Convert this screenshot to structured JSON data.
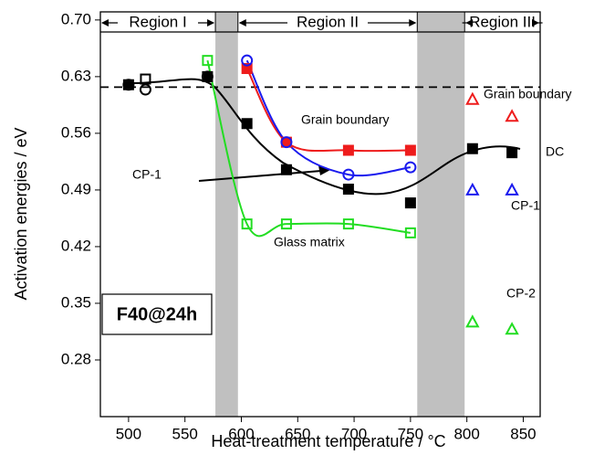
{
  "chart_data": {
    "type": "scatter",
    "xlabel": "Heat-treatment temperature / °C",
    "ylabel": "Activation energies / eV",
    "xlim": [
      475,
      865
    ],
    "ylim": [
      0.21,
      0.71
    ],
    "xticks": [
      500,
      550,
      600,
      650,
      700,
      750,
      800,
      850
    ],
    "yticks": [
      {
        "value": 0.28,
        "label": "0.28"
      },
      {
        "value": 0.35,
        "label": "0.35"
      },
      {
        "value": 0.42,
        "label": "0.42"
      },
      {
        "value": 0.49,
        "label": "0.49"
      },
      {
        "value": 0.56,
        "label": "0.56"
      },
      {
        "value": 0.63,
        "label": "0.63"
      },
      {
        "value": 0.7,
        "label": "0.70"
      }
    ],
    "regions": [
      "Region I",
      "Region II",
      "Region III"
    ],
    "bands": [
      [
        577,
        597
      ],
      [
        756,
        798
      ]
    ],
    "ref_line": 0.617,
    "sample": "F40@24h",
    "annotations": [
      "Grain boundary",
      "Grain boundary",
      "DC",
      "CP-1",
      "CP-1",
      "Glass matrix",
      "CP-2"
    ],
    "series": [
      {
        "color": "#000000",
        "marker": "square",
        "filled": true,
        "x": [
          500,
          570,
          605,
          640,
          695,
          750,
          805,
          840
        ],
        "values": [
          0.62,
          0.63,
          0.572,
          0.515,
          0.491,
          0.474,
          0.541,
          0.536
        ]
      },
      {
        "color": "#000000",
        "marker": "square",
        "filled": false,
        "x": [
          515
        ],
        "values": [
          0.627
        ]
      },
      {
        "color": "#000000",
        "marker": "circle",
        "filled": false,
        "x": [
          500,
          515,
          570
        ],
        "values": [
          0.62,
          0.614,
          0.63
        ]
      },
      {
        "color": "#ee1c1c",
        "marker": "square",
        "filled": true,
        "smooth": true,
        "x": [
          605,
          640,
          695,
          750
        ],
        "values": [
          0.64,
          0.549,
          0.539,
          0.539
        ]
      },
      {
        "color": "#1a1aee",
        "marker": "circle",
        "filled": false,
        "smooth": true,
        "x": [
          605,
          640,
          695,
          750
        ],
        "values": [
          0.65,
          0.549,
          0.509,
          0.518
        ]
      },
      {
        "color": "#22dd22",
        "marker": "square",
        "filled": false,
        "smooth": true,
        "x": [
          570,
          605,
          640,
          695,
          750
        ],
        "values": [
          0.65,
          0.448,
          0.448,
          0.448,
          0.437
        ]
      },
      {
        "color": "#ee1c1c",
        "marker": "triangle",
        "filled": false,
        "x": [
          805,
          840
        ],
        "values": [
          0.602,
          0.581
        ]
      },
      {
        "color": "#1a1aee",
        "marker": "triangle",
        "filled": false,
        "x": [
          805,
          840
        ],
        "values": [
          0.49,
          0.49
        ]
      },
      {
        "color": "#22dd22",
        "marker": "triangle",
        "filled": false,
        "x": [
          805,
          840
        ],
        "values": [
          0.327,
          0.318
        ]
      }
    ]
  }
}
